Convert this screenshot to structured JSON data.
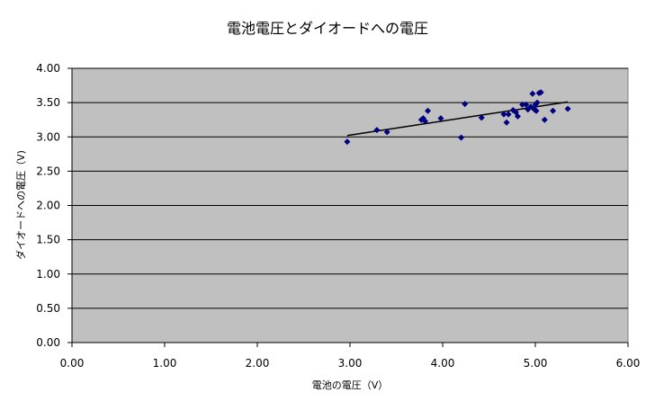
{
  "chart_data": {
    "type": "scatter",
    "title": "電池電圧とダイオードへの電圧",
    "xlabel": "電池の電圧（V）",
    "ylabel": "ダイオードへの電圧（V)",
    "xlim": [
      0,
      6
    ],
    "ylim": [
      0,
      4
    ],
    "x_ticks": [
      "0.00",
      "1.00",
      "2.00",
      "3.00",
      "4.00",
      "5.00",
      "6.00"
    ],
    "y_ticks": [
      "0.00",
      "0.50",
      "1.00",
      "1.50",
      "2.00",
      "2.50",
      "3.00",
      "3.50",
      "4.00"
    ],
    "grid": "horizontal",
    "plot_background": "#c0c0c0",
    "marker_color": "#000080",
    "trendline_color": "#000000",
    "series": [
      {
        "points": [
          [
            2.97,
            2.93
          ],
          [
            3.29,
            3.1
          ],
          [
            3.4,
            3.07
          ],
          [
            3.77,
            3.25
          ],
          [
            3.79,
            3.27
          ],
          [
            3.81,
            3.23
          ],
          [
            3.84,
            3.38
          ],
          [
            3.98,
            3.27
          ],
          [
            4.2,
            2.99
          ],
          [
            4.24,
            3.48
          ],
          [
            4.42,
            3.28
          ],
          [
            4.66,
            3.33
          ],
          [
            4.69,
            3.21
          ],
          [
            4.71,
            3.33
          ],
          [
            4.76,
            3.39
          ],
          [
            4.79,
            3.36
          ],
          [
            4.81,
            3.3
          ],
          [
            4.86,
            3.47
          ],
          [
            4.9,
            3.47
          ],
          [
            4.92,
            3.4
          ],
          [
            4.95,
            3.44
          ],
          [
            4.97,
            3.63
          ],
          [
            4.99,
            3.4
          ],
          [
            5.0,
            3.47
          ],
          [
            5.01,
            3.38
          ],
          [
            5.02,
            3.5
          ],
          [
            5.04,
            3.64
          ],
          [
            5.06,
            3.65
          ],
          [
            5.1,
            3.25
          ],
          [
            5.19,
            3.38
          ],
          [
            5.35,
            3.41
          ]
        ]
      }
    ],
    "trendline": {
      "x": [
        2.97,
        5.35
      ],
      "y": [
        3.02,
        3.51
      ]
    }
  }
}
